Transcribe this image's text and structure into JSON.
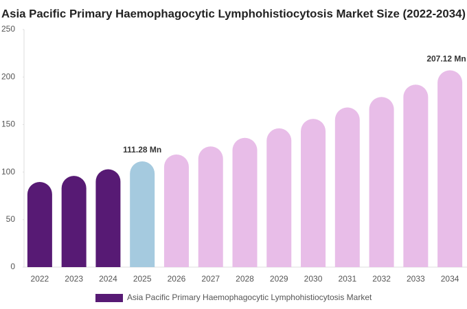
{
  "chart_data": {
    "type": "bar",
    "title": "Asia Pacific Primary Haemophagocytic Lymphohistiocytosis Market Size (2022-2034)",
    "categories": [
      "2022",
      "2023",
      "2024",
      "2025",
      "2026",
      "2027",
      "2028",
      "2029",
      "2030",
      "2031",
      "2032",
      "2033",
      "2034"
    ],
    "series": [
      {
        "name": "Asia Pacific Primary Haemophagocytic Lymphohistiocytosis Market",
        "color": "#571a74",
        "values": [
          89.6,
          96,
          103,
          111.28,
          118.5,
          127,
          136,
          146,
          156,
          168,
          179,
          192,
          207.12
        ],
        "value_labels": [
          null,
          null,
          null,
          "111.28 Mn",
          null,
          null,
          null,
          null,
          null,
          null,
          null,
          null,
          "207.12 Mn"
        ],
        "colors": [
          "#571a74",
          "#571a74",
          "#571a74",
          "#a5cadf",
          "#e8bde8",
          "#e8bde8",
          "#e8bde8",
          "#e8bde8",
          "#e8bde8",
          "#e8bde8",
          "#e8bde8",
          "#e8bde8",
          "#e8bde8"
        ]
      }
    ],
    "ylim": [
      0,
      250
    ],
    "yticks": [
      0,
      50,
      100,
      150,
      200,
      250
    ],
    "grid": false,
    "legend": "bottom"
  }
}
